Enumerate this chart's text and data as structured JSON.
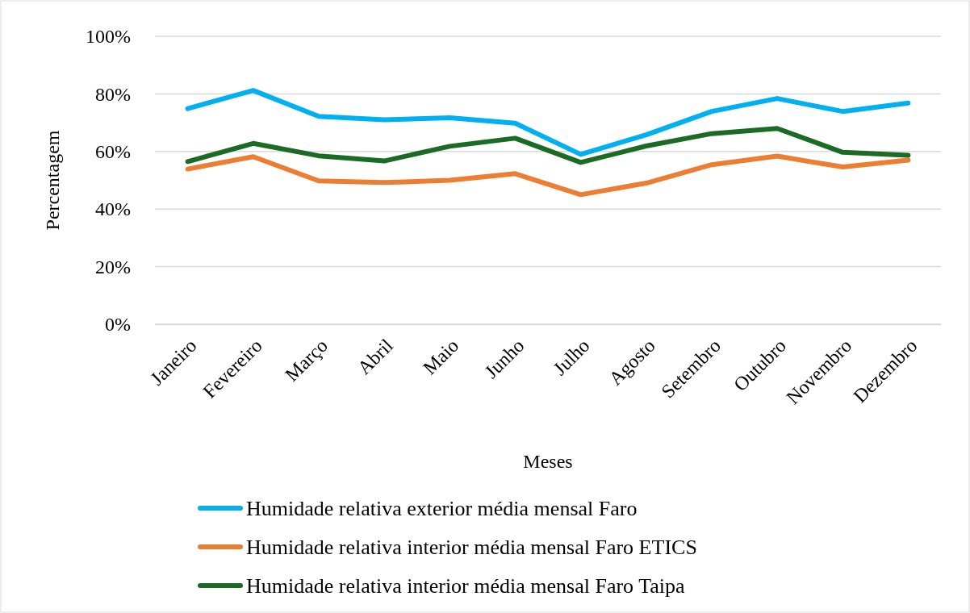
{
  "chart_data": {
    "type": "line",
    "xlabel": "Meses",
    "ylabel": "Percentagem",
    "categories": [
      "Janeiro",
      "Fevereiro",
      "Março",
      "Abril",
      "Maio",
      "Junho",
      "Julho",
      "Agosto",
      "Setembro",
      "Outubro",
      "Novembro",
      "Dezembro"
    ],
    "series": [
      {
        "name": "Humidade relativa exterior média mensal Faro",
        "color": "#00b0f0",
        "values": [
          74.9,
          81.2,
          72.2,
          71.0,
          71.7,
          69.8,
          59.0,
          65.8,
          73.9,
          78.4,
          73.9,
          76.8
        ]
      },
      {
        "name": "Humidade relativa interior média mensal Faro ETICS",
        "color": "#ed7d31",
        "values": [
          53.9,
          58.2,
          49.8,
          49.2,
          50.0,
          52.3,
          45.0,
          49.0,
          55.4,
          58.4,
          54.6,
          57.0
        ]
      },
      {
        "name": "Humidade relativa interior média mensal Faro Taipa",
        "color": "#1b6b24",
        "values": [
          56.5,
          62.8,
          58.5,
          56.7,
          61.8,
          64.6,
          56.2,
          61.9,
          66.2,
          68.0,
          59.7,
          58.7
        ]
      }
    ],
    "ylim": [
      0,
      100
    ],
    "yticks": [
      {
        "value": 0,
        "label": "0%"
      },
      {
        "value": 20,
        "label": "20%"
      },
      {
        "value": 40,
        "label": "40%"
      },
      {
        "value": 60,
        "label": "60%"
      },
      {
        "value": 80,
        "label": "80%"
      },
      {
        "value": 100,
        "label": "100%"
      }
    ],
    "grid": "y",
    "legend": "bottom",
    "marker": "none",
    "line_style": "solid"
  }
}
